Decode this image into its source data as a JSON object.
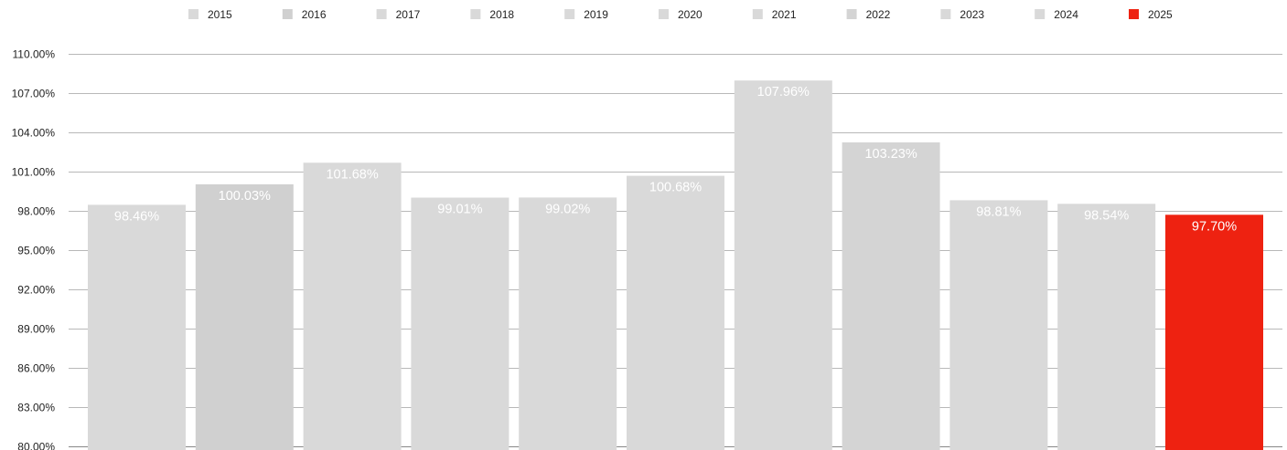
{
  "chart_data": {
    "type": "bar",
    "categories": [
      "2015",
      "2016",
      "2017",
      "2018",
      "2019",
      "2020",
      "2021",
      "2022",
      "2023",
      "2024",
      "2025"
    ],
    "values": [
      98.46,
      100.03,
      101.68,
      99.01,
      99.02,
      100.68,
      107.96,
      103.23,
      98.81,
      98.54,
      97.7
    ],
    "value_labels": [
      "98.46%",
      "100.03%",
      "101.68%",
      "99.01%",
      "99.02%",
      "100.68%",
      "107.96%",
      "103.23%",
      "98.81%",
      "98.54%",
      "97.70%"
    ],
    "colors": [
      "#d9d9d9",
      "#d0d0d0",
      "#d9d9d9",
      "#d9d9d9",
      "#d9d9d9",
      "#d9d9d9",
      "#d9d9d9",
      "#d4d4d4",
      "#d9d9d9",
      "#d9d9d9",
      "#ee2211"
    ],
    "ylim": [
      80,
      110
    ],
    "yticks": [
      80,
      83,
      86,
      89,
      92,
      95,
      98,
      101,
      104,
      107,
      110
    ],
    "ytick_labels": [
      "80.00%",
      "83.00%",
      "86.00%",
      "89.00%",
      "92.00%",
      "95.00%",
      "98.00%",
      "101.00%",
      "104.00%",
      "107.00%",
      "110.00%"
    ],
    "grid": true,
    "legend_position": "top",
    "title": "",
    "xlabel": "",
    "ylabel": ""
  }
}
